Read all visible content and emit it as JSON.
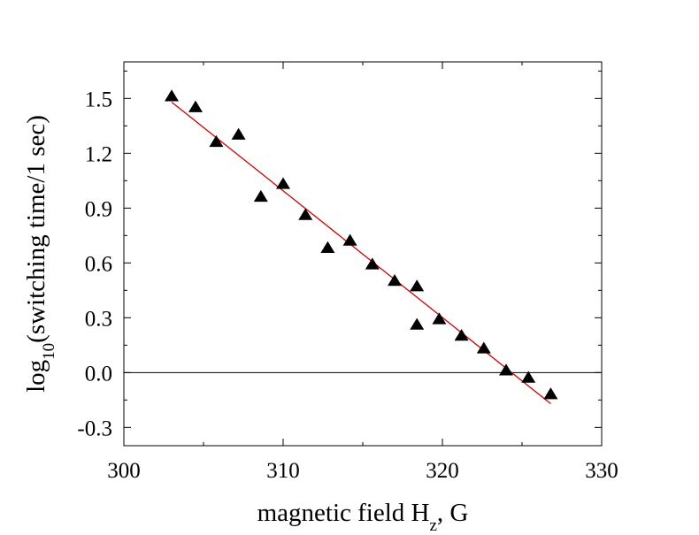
{
  "chart_data": {
    "type": "scatter",
    "xlabel": {
      "main": "magnetic field H",
      "sub": "z",
      "tail": ", G"
    },
    "ylabel": {
      "main": "log",
      "sub": "10",
      "tail": "(switching time/1 sec)"
    },
    "xlim": [
      300,
      330
    ],
    "ylim": [
      -0.4,
      1.7
    ],
    "xticks": [
      300,
      310,
      320,
      330
    ],
    "xtick_labels": [
      "300",
      "310",
      "320",
      "330"
    ],
    "yticks": [
      -0.3,
      0.0,
      0.3,
      0.6,
      0.9,
      1.2,
      1.5
    ],
    "ytick_labels": [
      "-0.3",
      "0.0",
      "0.3",
      "0.6",
      "0.9",
      "1.2",
      "1.5"
    ],
    "reference_line_y": 0.0,
    "grid": false,
    "marker": "filled-triangle",
    "marker_color": "#000000",
    "fit_line_color": "#cc0000",
    "fit_line": {
      "x": [
        303.0,
        326.8
      ],
      "y": [
        1.48,
        -0.17
      ]
    },
    "series": [
      {
        "x": [
          303.0,
          304.5,
          305.8,
          307.2,
          308.6,
          310.0,
          311.4,
          312.8,
          314.2,
          315.6,
          317.0,
          318.4,
          318.4,
          319.8,
          321.2,
          322.6,
          324.0,
          325.4,
          326.8
        ],
        "y": [
          1.51,
          1.45,
          1.26,
          1.3,
          0.96,
          1.03,
          0.86,
          0.68,
          0.72,
          0.59,
          0.5,
          0.47,
          0.26,
          0.29,
          0.2,
          0.13,
          0.01,
          -0.03,
          -0.12
        ]
      }
    ]
  }
}
